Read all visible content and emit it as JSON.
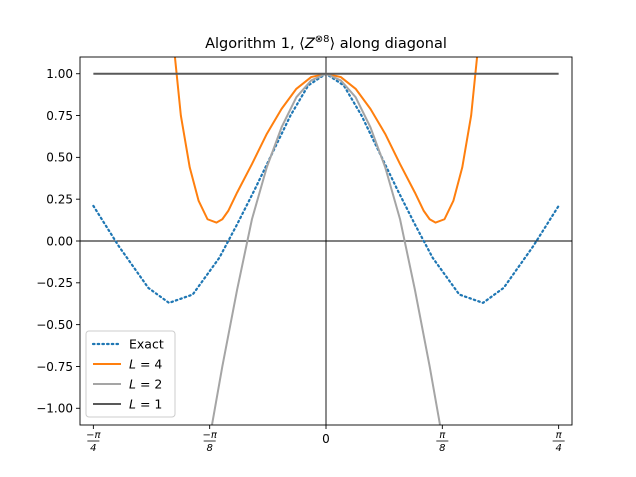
{
  "chart_data": {
    "type": "line",
    "title": "Algorithm 1, ⟨Z⊗8⟩ along diagonal",
    "title_parts": {
      "before": "Algorithm 1, ⟨",
      "var": "Z",
      "sup": "⊗8",
      "after": "⟩ along diagonal"
    },
    "xlabel": "",
    "ylabel": "",
    "xlim": [
      -0.8305,
      0.8305
    ],
    "ylim": [
      -1.1,
      1.1
    ],
    "grid": false,
    "legend_position": "lower left",
    "reference_lines": {
      "horizontal_at": 0,
      "vertical_at": 0
    },
    "yticks": [
      {
        "value": 1.0,
        "label": "1.00"
      },
      {
        "value": 0.75,
        "label": "0.75"
      },
      {
        "value": 0.5,
        "label": "0.50"
      },
      {
        "value": 0.25,
        "label": "0.25"
      },
      {
        "value": 0.0,
        "label": "0.00"
      },
      {
        "value": -0.25,
        "label": "−0.25"
      },
      {
        "value": -0.5,
        "label": "−0.50"
      },
      {
        "value": -0.75,
        "label": "−0.75"
      },
      {
        "value": -1.0,
        "label": "−1.00"
      }
    ],
    "xticks": [
      {
        "value": -0.7854,
        "num": "−π",
        "den": "4"
      },
      {
        "value": -0.3927,
        "num": "−π",
        "den": "8"
      },
      {
        "value": 0,
        "label": "0"
      },
      {
        "value": 0.3927,
        "num": "π",
        "den": "8"
      },
      {
        "value": 0.7854,
        "num": "π",
        "den": "4"
      }
    ],
    "series": [
      {
        "name": "Exact",
        "color": "#1f77b4",
        "style": "dotted",
        "x": [
          -0.7854,
          -0.7,
          -0.6,
          -0.53,
          -0.45,
          -0.36,
          -0.3,
          -0.24,
          -0.18,
          -0.12,
          -0.06,
          0,
          0.06,
          0.12,
          0.18,
          0.24,
          0.3,
          0.36,
          0.45,
          0.53,
          0.6,
          0.7,
          0.7854
        ],
        "y": [
          0.21,
          -0.03,
          -0.28,
          -0.37,
          -0.32,
          -0.1,
          0.1,
          0.31,
          0.53,
          0.75,
          0.93,
          1.0,
          0.93,
          0.75,
          0.53,
          0.31,
          0.1,
          -0.1,
          -0.32,
          -0.37,
          -0.28,
          -0.03,
          0.21
        ]
      },
      {
        "name": "L = 4",
        "name_parts": {
          "var": "L",
          "rest": " = 4"
        },
        "color": "#ff7f0e",
        "style": "solid",
        "x": [
          -0.51,
          -0.49,
          -0.46,
          -0.43,
          -0.4,
          -0.37,
          -0.35,
          -0.33,
          -0.3,
          -0.25,
          -0.2,
          -0.15,
          -0.1,
          -0.05,
          0,
          0.05,
          0.1,
          0.15,
          0.2,
          0.25,
          0.3,
          0.33,
          0.35,
          0.37,
          0.4,
          0.43,
          0.46,
          0.49,
          0.51
        ],
        "y": [
          1.1,
          0.75,
          0.44,
          0.24,
          0.13,
          0.11,
          0.13,
          0.18,
          0.29,
          0.46,
          0.64,
          0.79,
          0.91,
          0.98,
          1.0,
          0.98,
          0.91,
          0.79,
          0.64,
          0.46,
          0.29,
          0.18,
          0.13,
          0.11,
          0.13,
          0.24,
          0.44,
          0.75,
          1.1
        ]
      },
      {
        "name": "L = 2",
        "name_parts": {
          "var": "L",
          "rest": " = 2"
        },
        "color": "#a5a5a5",
        "style": "solid",
        "x": [
          -0.385,
          -0.35,
          -0.3,
          -0.25,
          -0.2,
          -0.15,
          -0.1,
          -0.05,
          0,
          0.05,
          0.1,
          0.15,
          0.2,
          0.25,
          0.3,
          0.35,
          0.385
        ],
        "y": [
          -1.1,
          -0.75,
          -0.29,
          0.13,
          0.44,
          0.68,
          0.86,
          0.96,
          1.0,
          0.96,
          0.86,
          0.68,
          0.44,
          0.13,
          -0.29,
          -0.75,
          -1.1
        ]
      },
      {
        "name": "L = 1",
        "name_parts": {
          "var": "L",
          "rest": " = 1"
        },
        "color": "#595959",
        "style": "solid",
        "x": [
          -0.7854,
          0.7854
        ],
        "y": [
          1.0,
          1.0
        ]
      }
    ]
  }
}
